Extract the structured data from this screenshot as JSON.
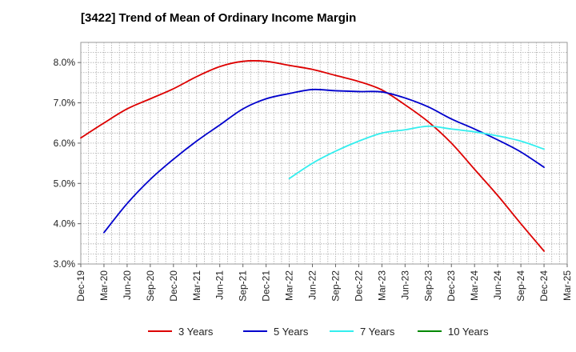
{
  "chart_data": {
    "type": "line",
    "title": "[3422]  Trend of Mean of Ordinary Income Margin",
    "xlabel": "",
    "ylabel": "",
    "ylim": [
      3.0,
      8.5
    ],
    "y_ticks": [
      {
        "value": 3.0,
        "label": "3.0%"
      },
      {
        "value": 4.0,
        "label": "4.0%"
      },
      {
        "value": 5.0,
        "label": "5.0%"
      },
      {
        "value": 6.0,
        "label": "6.0%"
      },
      {
        "value": 7.0,
        "label": "7.0%"
      },
      {
        "value": 8.0,
        "label": "8.0%"
      }
    ],
    "x_ticks": [
      "Dec-19",
      "Mar-20",
      "Jun-20",
      "Sep-20",
      "Dec-20",
      "Mar-21",
      "Jun-21",
      "Sep-21",
      "Dec-21",
      "Mar-22",
      "Jun-22",
      "Sep-22",
      "Dec-22",
      "Mar-23",
      "Jun-23",
      "Sep-23",
      "Dec-23",
      "Mar-24",
      "Jun-24",
      "Sep-24",
      "Dec-24",
      "Mar-25"
    ],
    "grid": true,
    "legend_position": "bottom",
    "series": [
      {
        "name": "3 Years",
        "color": "#dd0000",
        "x": [
          "Dec-19",
          "Mar-20",
          "Jun-20",
          "Sep-20",
          "Dec-20",
          "Mar-21",
          "Jun-21",
          "Sep-21",
          "Dec-21",
          "Mar-22",
          "Jun-22",
          "Sep-22",
          "Dec-22",
          "Mar-23",
          "Jun-23",
          "Sep-23",
          "Dec-23",
          "Mar-24",
          "Jun-24",
          "Sep-24",
          "Dec-24"
        ],
        "values": [
          6.13,
          6.5,
          6.85,
          7.1,
          7.35,
          7.65,
          7.9,
          8.03,
          8.03,
          7.93,
          7.83,
          7.68,
          7.53,
          7.32,
          6.95,
          6.53,
          6.0,
          5.35,
          4.7,
          4.0,
          3.32
        ]
      },
      {
        "name": "5 Years",
        "color": "#0000cc",
        "x": [
          "Mar-20",
          "Jun-20",
          "Sep-20",
          "Dec-20",
          "Mar-21",
          "Jun-21",
          "Sep-21",
          "Dec-21",
          "Mar-22",
          "Jun-22",
          "Sep-22",
          "Dec-22",
          "Mar-23",
          "Jun-23",
          "Sep-23",
          "Dec-23",
          "Mar-24",
          "Jun-24",
          "Sep-24",
          "Dec-24"
        ],
        "values": [
          3.78,
          4.5,
          5.1,
          5.6,
          6.05,
          6.45,
          6.85,
          7.1,
          7.23,
          7.33,
          7.3,
          7.28,
          7.27,
          7.12,
          6.9,
          6.6,
          6.35,
          6.08,
          5.78,
          5.4
        ]
      },
      {
        "name": "7 Years",
        "color": "#33eeee",
        "x": [
          "Mar-22",
          "Jun-22",
          "Sep-22",
          "Dec-22",
          "Mar-23",
          "Jun-23",
          "Sep-23",
          "Dec-23",
          "Mar-24",
          "Jun-24",
          "Sep-24",
          "Dec-24"
        ],
        "values": [
          5.12,
          5.5,
          5.8,
          6.05,
          6.25,
          6.33,
          6.42,
          6.35,
          6.28,
          6.18,
          6.05,
          5.85
        ]
      },
      {
        "name": "10 Years",
        "color": "#008800",
        "x": [],
        "values": []
      }
    ]
  }
}
